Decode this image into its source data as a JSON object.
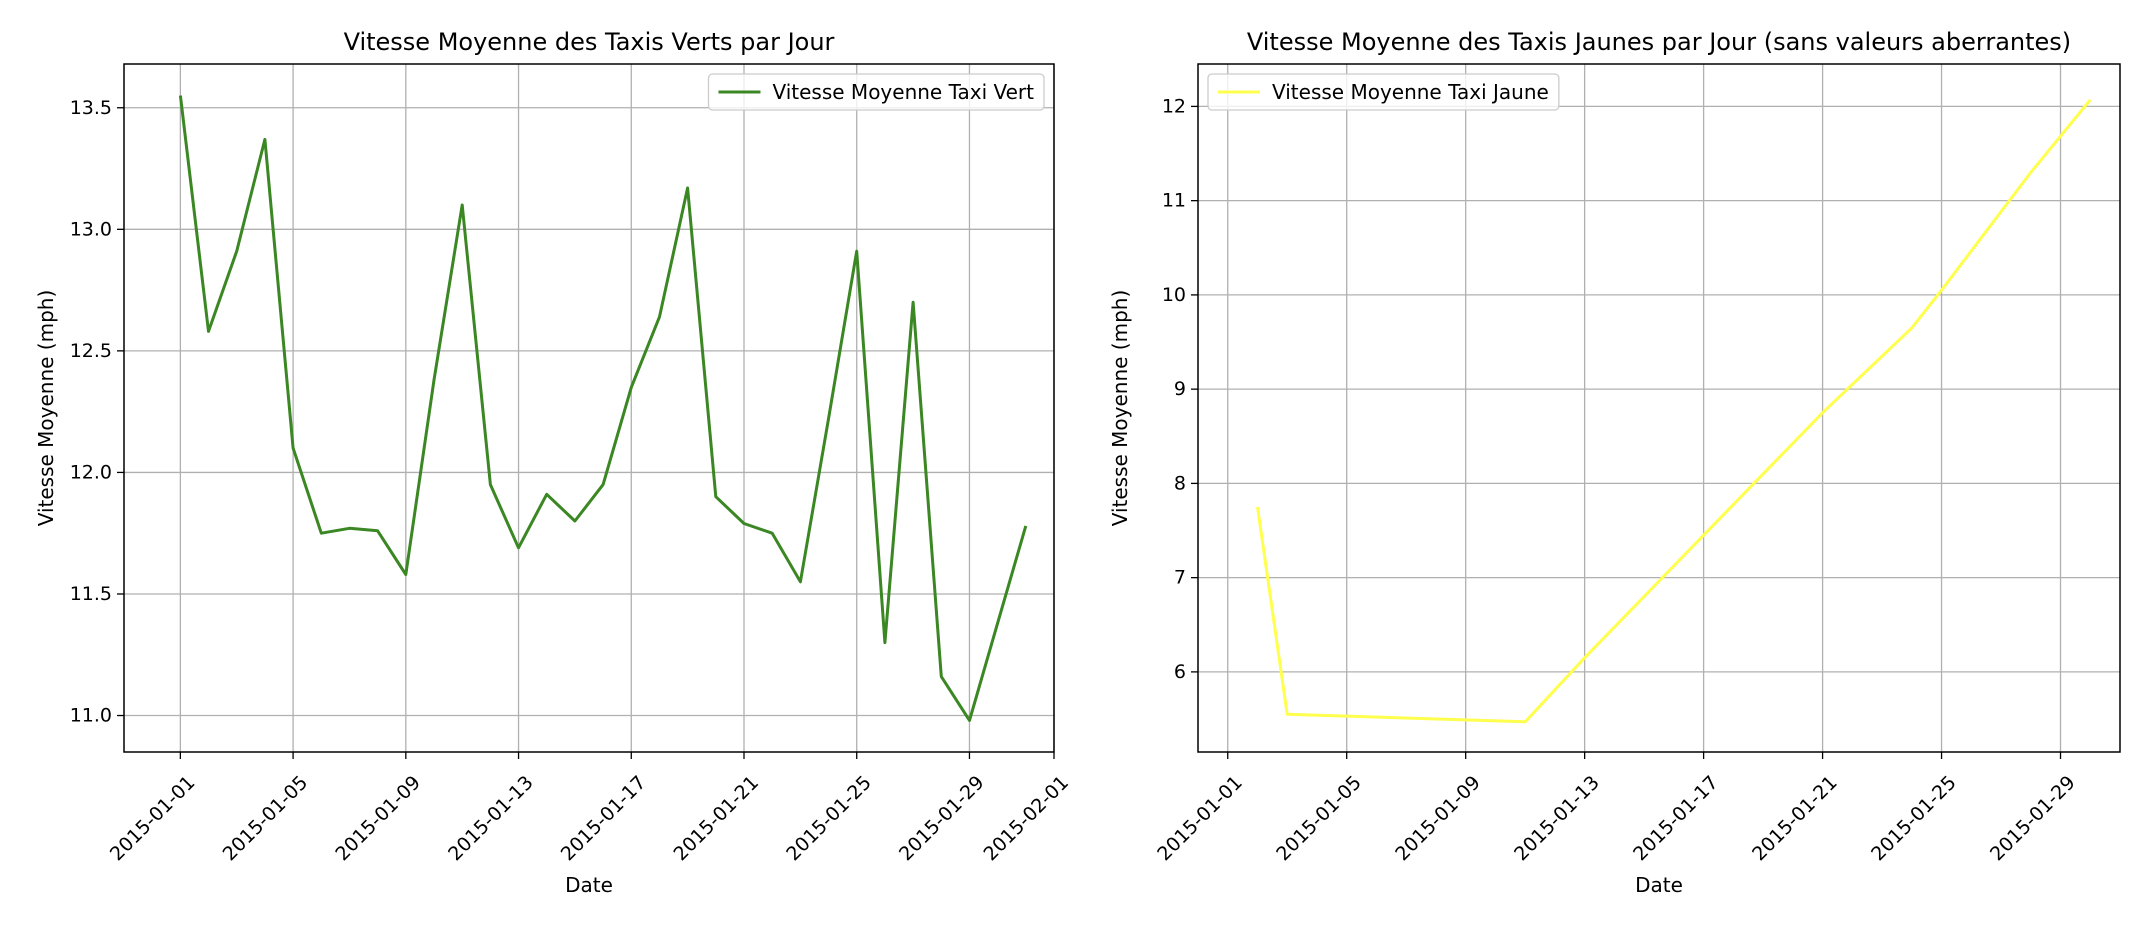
{
  "chart_data": [
    {
      "type": "line",
      "title": "Vitesse Moyenne des Taxis Verts par Jour",
      "xlabel": "Date",
      "ylabel": "Vitesse Moyenne (mph)",
      "x_ticks": [
        "2015-01-01",
        "2015-01-05",
        "2015-01-09",
        "2015-01-13",
        "2015-01-17",
        "2015-01-21",
        "2015-01-25",
        "2015-01-29",
        "2015-02-01"
      ],
      "y_ticks": [
        "11.0",
        "11.5",
        "12.0",
        "12.5",
        "13.0",
        "13.5"
      ],
      "xlim": [
        "2014-12-30",
        "2015-02-01"
      ],
      "ylim": [
        10.85,
        13.68
      ],
      "grid": true,
      "legend_position": "upper right",
      "series": [
        {
          "name": "Vitesse Moyenne Taxi Vert",
          "color": "#3a8723",
          "x": [
            "2015-01-01",
            "2015-01-02",
            "2015-01-03",
            "2015-01-04",
            "2015-01-05",
            "2015-01-06",
            "2015-01-07",
            "2015-01-08",
            "2015-01-09",
            "2015-01-10",
            "2015-01-11",
            "2015-01-12",
            "2015-01-13",
            "2015-01-14",
            "2015-01-15",
            "2015-01-16",
            "2015-01-17",
            "2015-01-18",
            "2015-01-19",
            "2015-01-20",
            "2015-01-21",
            "2015-01-22",
            "2015-01-23",
            "2015-01-24",
            "2015-01-25",
            "2015-01-26",
            "2015-01-27",
            "2015-01-28",
            "2015-01-29",
            "2015-01-30",
            "2015-01-31"
          ],
          "values": [
            13.55,
            12.58,
            12.91,
            13.37,
            12.1,
            11.75,
            11.77,
            11.76,
            11.58,
            12.38,
            13.1,
            11.95,
            11.69,
            11.91,
            11.8,
            11.95,
            12.35,
            12.64,
            13.17,
            11.9,
            11.79,
            11.75,
            11.55,
            12.22,
            12.91,
            11.3,
            12.7,
            11.16,
            10.98,
            11.38,
            11.78
          ]
        }
      ]
    },
    {
      "type": "line",
      "title": "Vitesse Moyenne des Taxis Jaunes par Jour (sans valeurs aberrantes)",
      "xlabel": "Date",
      "ylabel": "Vitesse Moyenne (mph)",
      "x_ticks": [
        "2015-01-01",
        "2015-01-05",
        "2015-01-09",
        "2015-01-13",
        "2015-01-17",
        "2015-01-21",
        "2015-01-25",
        "2015-01-29"
      ],
      "y_ticks": [
        "6",
        "7",
        "8",
        "9",
        "10",
        "11",
        "12"
      ],
      "xlim": [
        "2014-12-31",
        "2015-01-31"
      ],
      "ylim": [
        5.15,
        12.45
      ],
      "grid": true,
      "legend_position": "upper left",
      "series": [
        {
          "name": "Vitesse Moyenne Taxi Jaune",
          "color": "#ffff4d",
          "x": [
            "2015-01-02",
            "2015-01-03",
            "2015-01-11",
            "2015-01-13",
            "2015-01-17",
            "2015-01-21",
            "2015-01-24",
            "2015-01-25",
            "2015-01-28",
            "2015-01-30"
          ],
          "values": [
            7.75,
            5.55,
            5.47,
            6.15,
            7.45,
            8.75,
            9.65,
            10.05,
            11.3,
            12.07
          ]
        }
      ]
    }
  ]
}
